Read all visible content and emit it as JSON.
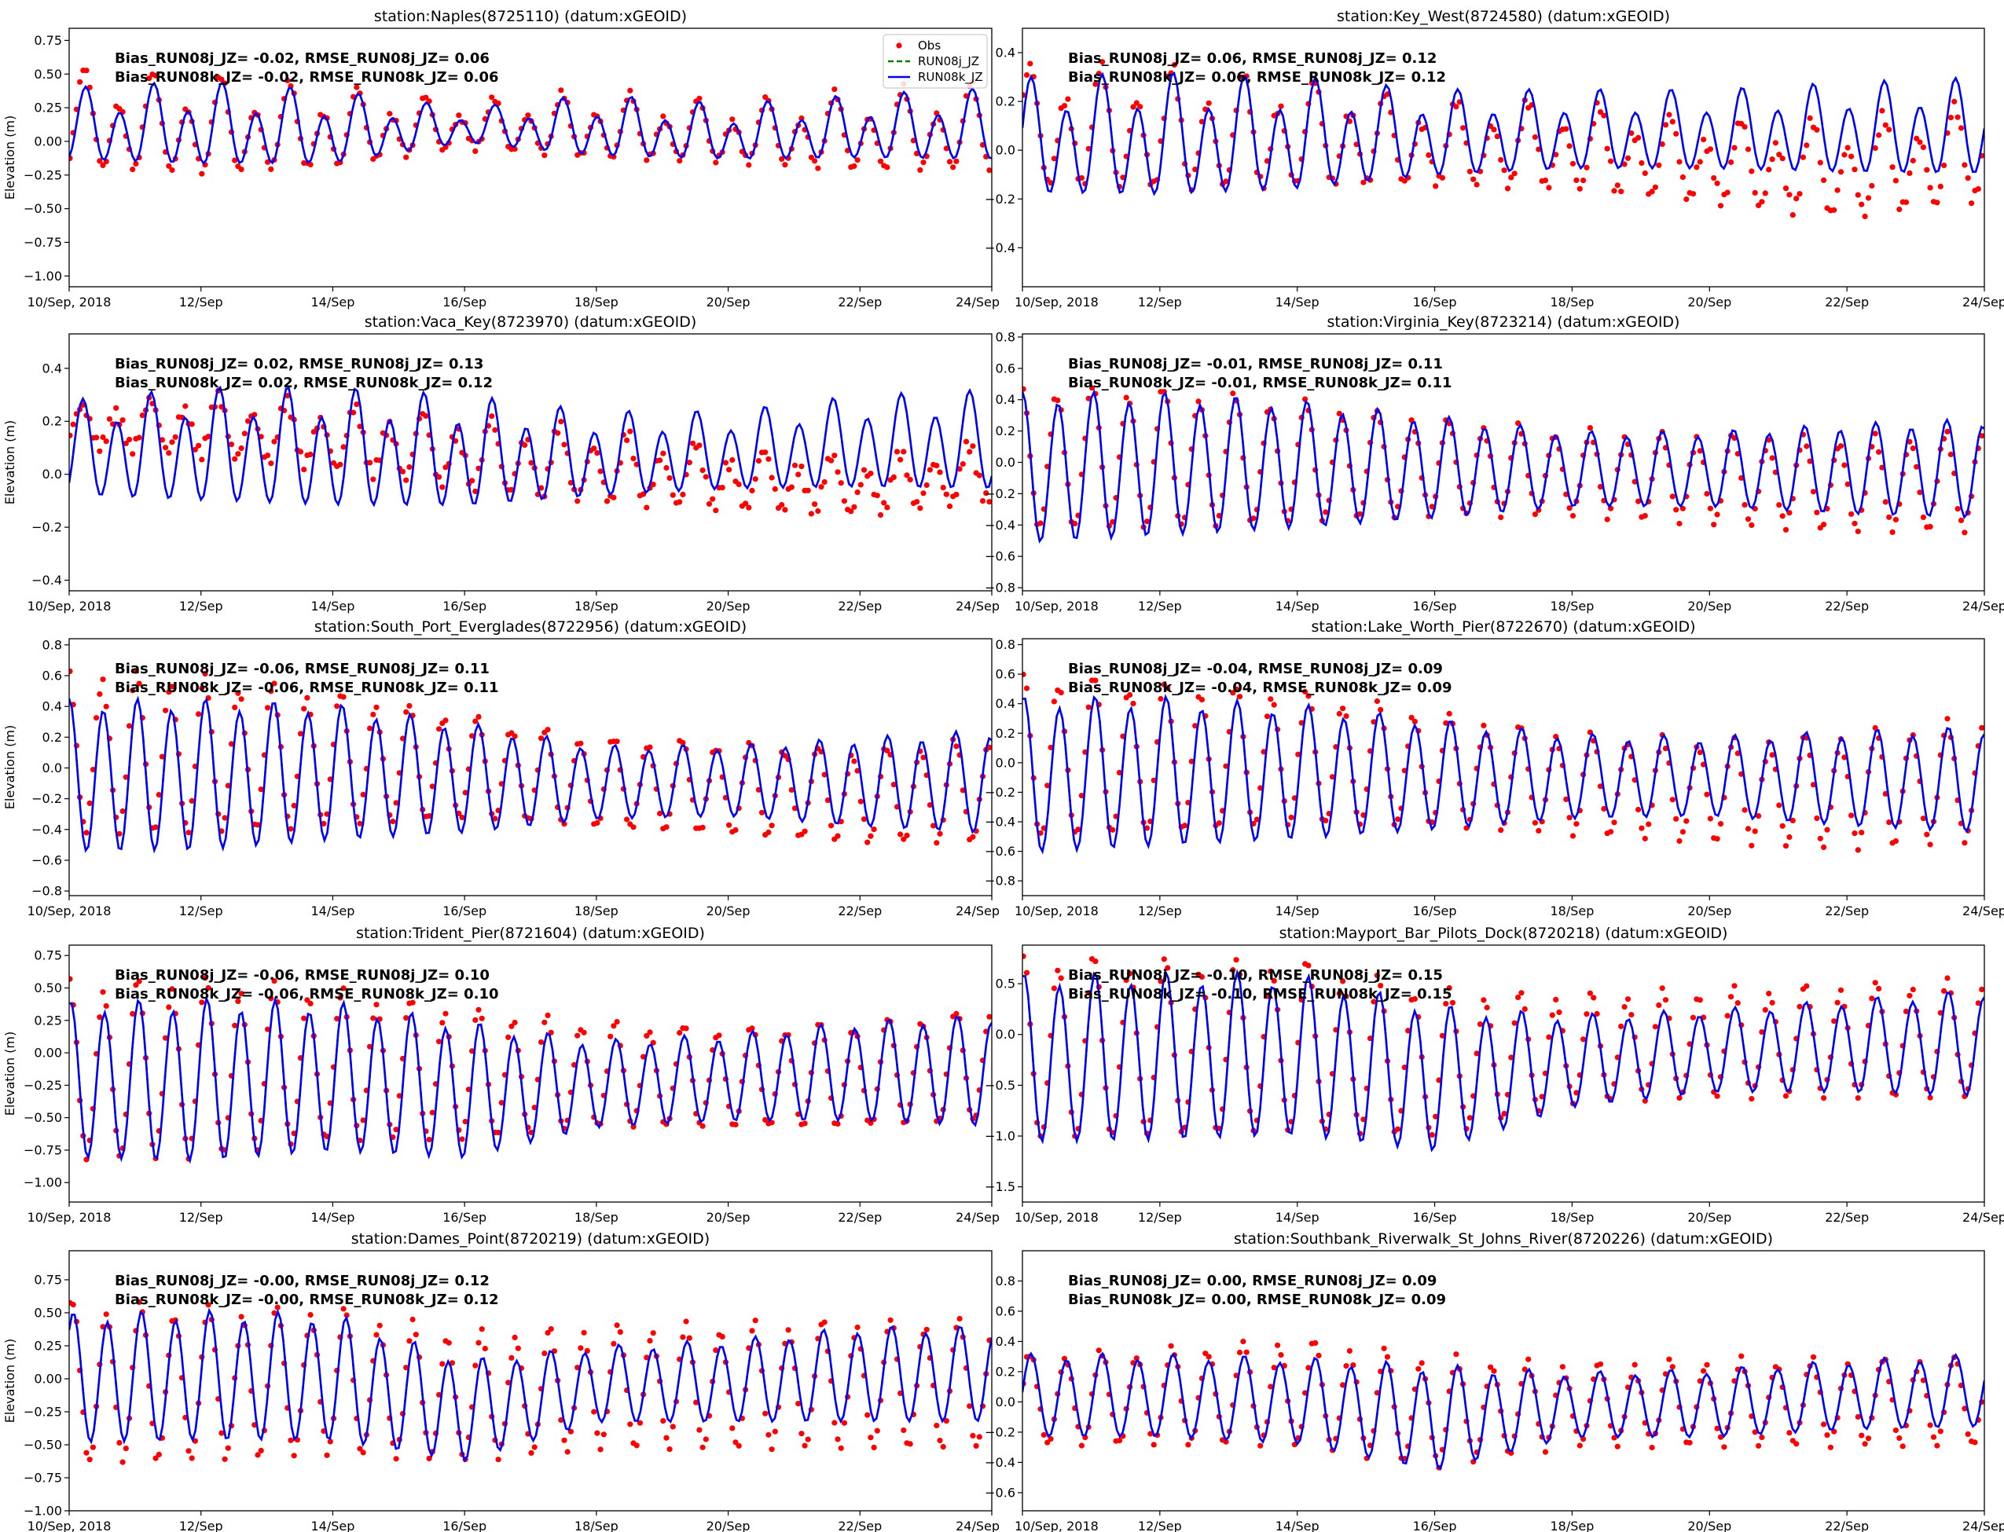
{
  "chart_data": {
    "type": "line",
    "x_tick_labels": [
      "10/Sep, 2018",
      "12/Sep",
      "14/Sep",
      "16/Sep",
      "18/Sep",
      "20/Sep",
      "22/Sep",
      "24/Sep"
    ],
    "x_range_days": [
      0,
      14
    ],
    "ylabel": "Elevation (m)",
    "legend": {
      "placement": "top-right",
      "panel": 0,
      "entries": [
        "Obs",
        "RUN08j_JZ",
        "RUN08k_JZ"
      ]
    },
    "series_colors": {
      "Obs": "#ff0000",
      "RUN08j_JZ": "#008000",
      "RUN08k_JZ": "#0000ff"
    },
    "envelope_days": [
      0,
      2,
      4,
      6,
      8,
      10,
      12,
      14
    ],
    "panels": [
      {
        "title": "station:Naples(8725110) (datum:xGEOID)",
        "annotation": [
          "Bias_RUN08j_JZ= -0.02, RMSE_RUN08j_JZ=  0.06",
          "Bias_RUN08k_JZ= -0.02, RMSE_RUN08k_JZ=  0.06"
        ],
        "ylim": [
          -1.08,
          0.84
        ],
        "ytick_labels": [
          "−1.00",
          "−0.75",
          "−0.50",
          "−0.25",
          "0.00",
          "0.25",
          "0.50",
          "0.75"
        ],
        "phase_hours": 6,
        "diurnal": 0.45,
        "model": {
          "high": [
            0.4,
            0.45,
            0.38,
            0.25,
            0.35,
            0.28,
            0.35,
            0.4
          ],
          "low": [
            -0.22,
            -0.27,
            -0.25,
            -0.05,
            -0.18,
            -0.2,
            -0.2,
            -0.22
          ]
        },
        "obs": {
          "high": [
            0.55,
            0.5,
            0.42,
            0.3,
            0.38,
            0.3,
            0.38,
            0.45
          ],
          "low": [
            -0.3,
            -0.35,
            -0.28,
            -0.1,
            -0.2,
            -0.22,
            -0.3,
            -0.3
          ]
        }
      },
      {
        "title": "station:Key_West(8724580) (datum:xGEOID)",
        "annotation": [
          "Bias_RUN08j_JZ=  0.06, RMSE_RUN08j_JZ=  0.12",
          "Bias_RUN08k_JZ=  0.06, RMSE_RUN08k_JZ=  0.12"
        ],
        "ylim": [
          -0.56,
          0.5
        ],
        "ytick_labels": [
          "−0.4",
          "−0.2",
          "0.0",
          "0.2",
          "0.4"
        ],
        "phase_hours": 3,
        "diurnal": 0.35,
        "model": {
          "high": [
            0.3,
            0.32,
            0.3,
            0.25,
            0.25,
            0.25,
            0.28,
            0.3
          ],
          "low": [
            -0.24,
            -0.25,
            -0.22,
            -0.15,
            -0.12,
            -0.12,
            -0.14,
            -0.15
          ]
        },
        "obs": {
          "high": [
            0.35,
            0.35,
            0.3,
            0.2,
            0.2,
            0.12,
            0.12,
            0.2
          ],
          "low": [
            -0.2,
            -0.22,
            -0.2,
            -0.18,
            -0.2,
            -0.25,
            -0.32,
            -0.25
          ]
        }
      },
      {
        "title": "station:Vaca_Key(8723970) (datum:xGEOID)",
        "annotation": [
          "Bias_RUN08j_JZ=  0.02, RMSE_RUN08j_JZ=  0.13",
          "Bias_RUN08k_JZ=  0.02, RMSE_RUN08k_JZ=  0.12"
        ],
        "ylim": [
          -0.44,
          0.53
        ],
        "ytick_labels": [
          "−0.4",
          "−0.2",
          "0.0",
          "0.2",
          "0.4"
        ],
        "phase_hours": 5,
        "diurnal": 0.3,
        "model": {
          "high": [
            0.28,
            0.33,
            0.33,
            0.3,
            0.24,
            0.24,
            0.3,
            0.32
          ],
          "low": [
            -0.12,
            -0.15,
            -0.17,
            -0.17,
            -0.12,
            -0.09,
            -0.09,
            -0.1
          ]
        },
        "obs": {
          "high": [
            0.25,
            0.3,
            0.26,
            0.22,
            0.17,
            0.1,
            0.06,
            0.12
          ],
          "low": [
            0.1,
            0.05,
            0.0,
            -0.08,
            -0.13,
            -0.15,
            -0.17,
            -0.12
          ]
        }
      },
      {
        "title": "station:Virginia_Key(8723214) (datum:xGEOID)",
        "annotation": [
          "Bias_RUN08j_JZ= -0.01, RMSE_RUN08j_JZ=  0.11",
          "Bias_RUN08k_JZ= -0.01, RMSE_RUN08k_JZ=  0.11"
        ],
        "ylim": [
          -0.82,
          0.82
        ],
        "ytick_labels": [
          "−0.8",
          "−0.6",
          "−0.4",
          "−0.2",
          "0.0",
          "0.2",
          "0.4",
          "0.6",
          "0.8"
        ],
        "phase_hours": 0,
        "diurnal": 0.08,
        "model": {
          "high": [
            0.45,
            0.45,
            0.4,
            0.3,
            0.2,
            0.2,
            0.25,
            0.28
          ],
          "low": [
            -0.55,
            -0.5,
            -0.45,
            -0.38,
            -0.3,
            -0.3,
            -0.35,
            -0.38
          ]
        },
        "obs": {
          "high": [
            0.5,
            0.48,
            0.4,
            0.28,
            0.2,
            0.18,
            0.15,
            0.2
          ],
          "low": [
            -0.45,
            -0.45,
            -0.4,
            -0.35,
            -0.35,
            -0.4,
            -0.45,
            -0.45
          ]
        }
      },
      {
        "title": "station:South_Port_Everglades(8722956) (datum:xGEOID)",
        "annotation": [
          "Bias_RUN08j_JZ= -0.06, RMSE_RUN08j_JZ=  0.11",
          "Bias_RUN08k_JZ= -0.06, RMSE_RUN08k_JZ=  0.11"
        ],
        "ylim": [
          -0.83,
          0.84
        ],
        "ytick_labels": [
          "−0.8",
          "−0.6",
          "−0.4",
          "−0.2",
          "0.0",
          "0.2",
          "0.4",
          "0.6",
          "0.8"
        ],
        "phase_hours": 0,
        "diurnal": 0.08,
        "model": {
          "high": [
            0.45,
            0.45,
            0.42,
            0.3,
            0.15,
            0.15,
            0.2,
            0.25
          ],
          "low": [
            -0.58,
            -0.57,
            -0.5,
            -0.45,
            -0.35,
            -0.33,
            -0.4,
            -0.45
          ]
        },
        "obs": {
          "high": [
            0.65,
            0.6,
            0.5,
            0.35,
            0.2,
            0.18,
            0.12,
            0.2
          ],
          "low": [
            -0.45,
            -0.45,
            -0.4,
            -0.35,
            -0.4,
            -0.45,
            -0.5,
            -0.5
          ]
        }
      },
      {
        "title": "station:Lake_Worth_Pier(8722670) (datum:xGEOID)",
        "annotation": [
          "Bias_RUN08j_JZ= -0.04, RMSE_RUN08j_JZ=  0.09",
          "Bias_RUN08k_JZ= -0.04, RMSE_RUN08k_JZ=  0.09"
        ],
        "ylim": [
          -0.9,
          0.84
        ],
        "ytick_labels": [
          "−0.8",
          "−0.6",
          "−0.4",
          "−0.2",
          "0.0",
          "0.2",
          "0.4",
          "0.6",
          "0.8"
        ],
        "phase_hours": 0.5,
        "diurnal": 0.08,
        "model": {
          "high": [
            0.45,
            0.45,
            0.4,
            0.3,
            0.2,
            0.18,
            0.22,
            0.25
          ],
          "low": [
            -0.65,
            -0.6,
            -0.55,
            -0.48,
            -0.4,
            -0.38,
            -0.45,
            -0.5
          ]
        },
        "obs": {
          "high": [
            0.62,
            0.55,
            0.5,
            0.35,
            0.2,
            0.15,
            0.2,
            0.3
          ],
          "low": [
            -0.55,
            -0.5,
            -0.45,
            -0.45,
            -0.5,
            -0.55,
            -0.6,
            -0.55
          ]
        }
      },
      {
        "title": "station:Trident_Pier(8721604) (datum:xGEOID)",
        "annotation": [
          "Bias_RUN08j_JZ= -0.06, RMSE_RUN08j_JZ=  0.10",
          "Bias_RUN08k_JZ= -0.06, RMSE_RUN08k_JZ=  0.10"
        ],
        "ylim": [
          -1.15,
          0.83
        ],
        "ytick_labels": [
          "−1.00",
          "−0.75",
          "−0.50",
          "−0.25",
          "0.00",
          "0.25",
          "0.50",
          "0.75"
        ],
        "phase_hours": 0.5,
        "diurnal": 0.08,
        "model": {
          "high": [
            0.4,
            0.42,
            0.4,
            0.25,
            0.1,
            0.15,
            0.25,
            0.3
          ],
          "low": [
            -0.85,
            -0.88,
            -0.8,
            -0.85,
            -0.6,
            -0.55,
            -0.55,
            -0.6
          ]
        },
        "obs": {
          "high": [
            0.55,
            0.58,
            0.5,
            0.35,
            0.25,
            0.2,
            0.25,
            0.35
          ],
          "low": [
            -0.85,
            -0.85,
            -0.7,
            -0.7,
            -0.6,
            -0.6,
            -0.6,
            -0.55
          ]
        }
      },
      {
        "title": "station:Mayport_Bar_Pilots_Dock(8720218) (datum:xGEOID)",
        "annotation": [
          "Bias_RUN08j_JZ= -0.10, RMSE_RUN08j_JZ=  0.15",
          "Bias_RUN08k_JZ= -0.10, RMSE_RUN08k_JZ=  0.15"
        ],
        "ylim": [
          -1.65,
          0.88
        ],
        "ytick_labels": [
          "−1.5",
          "−1.0",
          "−0.5",
          "0.0",
          "0.5"
        ],
        "phase_hours": 0.5,
        "diurnal": 0.08,
        "model": {
          "high": [
            0.6,
            0.62,
            0.6,
            0.3,
            0.2,
            0.25,
            0.35,
            0.45
          ],
          "low": [
            -1.12,
            -1.1,
            -1.05,
            -1.2,
            -0.75,
            -0.6,
            -0.6,
            -0.65
          ]
        },
        "obs": {
          "high": [
            0.8,
            0.75,
            0.75,
            0.45,
            0.4,
            0.45,
            0.5,
            0.55
          ],
          "low": [
            -1.1,
            -1.05,
            -1.0,
            -1.05,
            -0.7,
            -0.65,
            -0.65,
            -0.65
          ]
        }
      },
      {
        "title": "station:Dames_Point(8720219) (datum:xGEOID)",
        "annotation": [
          "Bias_RUN08j_JZ= -0.00, RMSE_RUN08j_JZ=  0.12",
          "Bias_RUN08k_JZ= -0.00, RMSE_RUN08k_JZ=  0.12"
        ],
        "ylim": [
          -1.0,
          0.97
        ],
        "ytick_labels": [
          "−1.00",
          "−0.75",
          "−0.50",
          "−0.25",
          "0.00",
          "0.25",
          "0.50",
          "0.75"
        ],
        "phase_hours": 1.5,
        "diurnal": 0.08,
        "model": {
          "high": [
            0.5,
            0.52,
            0.5,
            0.15,
            0.25,
            0.3,
            0.4,
            0.4
          ],
          "low": [
            -0.52,
            -0.5,
            -0.5,
            -0.65,
            -0.35,
            -0.35,
            -0.35,
            -0.35
          ]
        },
        "obs": {
          "high": [
            0.6,
            0.55,
            0.55,
            0.35,
            0.4,
            0.42,
            0.45,
            0.45
          ],
          "low": [
            -0.68,
            -0.65,
            -0.6,
            -0.65,
            -0.55,
            -0.55,
            -0.55,
            -0.55
          ]
        }
      },
      {
        "title": "station:Southbank_Riverwalk_St_Johns_River(8720226) (datum:xGEOID)",
        "annotation": [
          "Bias_RUN08j_JZ=  0.00, RMSE_RUN08j_JZ=  0.09",
          "Bias_RUN08k_JZ=  0.00, RMSE_RUN08k_JZ=  0.09"
        ],
        "ylim": [
          -0.72,
          1.0
        ],
        "ytick_labels": [
          "−0.6",
          "−0.4",
          "−0.2",
          "0.0",
          "0.2",
          "0.4",
          "0.6",
          "0.8"
        ],
        "phase_hours": 3,
        "diurnal": 0.08,
        "model": {
          "high": [
            0.32,
            0.32,
            0.3,
            0.25,
            0.2,
            0.22,
            0.28,
            0.32
          ],
          "low": [
            -0.25,
            -0.25,
            -0.3,
            -0.48,
            -0.25,
            -0.25,
            -0.2,
            -0.18
          ]
        },
        "obs": {
          "high": [
            0.32,
            0.35,
            0.42,
            0.3,
            0.25,
            0.28,
            0.28,
            0.3
          ],
          "low": [
            -0.3,
            -0.3,
            -0.3,
            -0.45,
            -0.3,
            -0.3,
            -0.3,
            -0.3
          ]
        }
      }
    ]
  }
}
